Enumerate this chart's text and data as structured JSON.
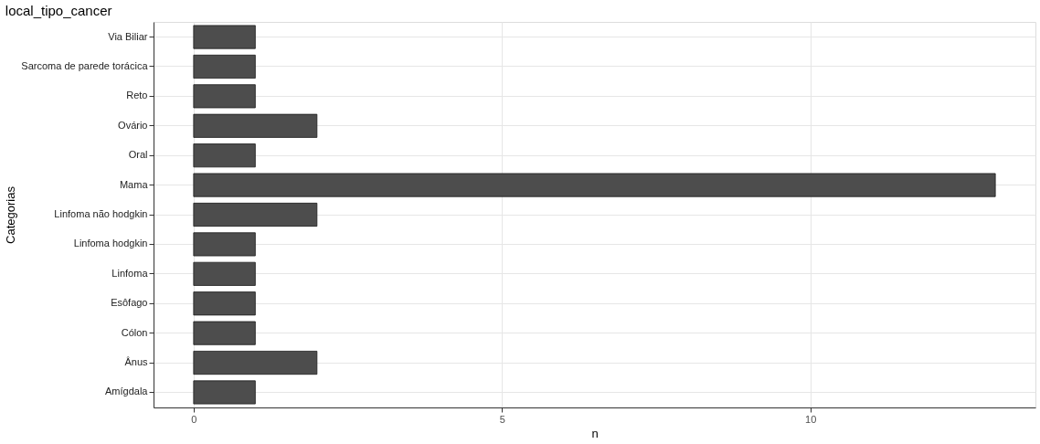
{
  "chart_data": {
    "type": "bar",
    "orientation": "horizontal",
    "title": "local_tipo_cancer",
    "xlabel": "n",
    "ylabel": "Categorias",
    "categories": [
      "Via Biliar",
      "Sarcoma de parede torácica",
      "Reto",
      "Ovário",
      "Oral",
      "Mama",
      "Linfoma não hodgkin",
      "Linfoma hodgkin",
      "Linfoma",
      "Esôfago",
      "Cólon",
      "Ânus",
      "Amígdala"
    ],
    "values": [
      1,
      1,
      1,
      2,
      1,
      13,
      2,
      1,
      1,
      1,
      1,
      2,
      1
    ],
    "color": "#4d4d4d",
    "xlim": [
      -0.65,
      13.65
    ],
    "xticks": [
      0,
      5,
      10
    ],
    "grid": true
  }
}
